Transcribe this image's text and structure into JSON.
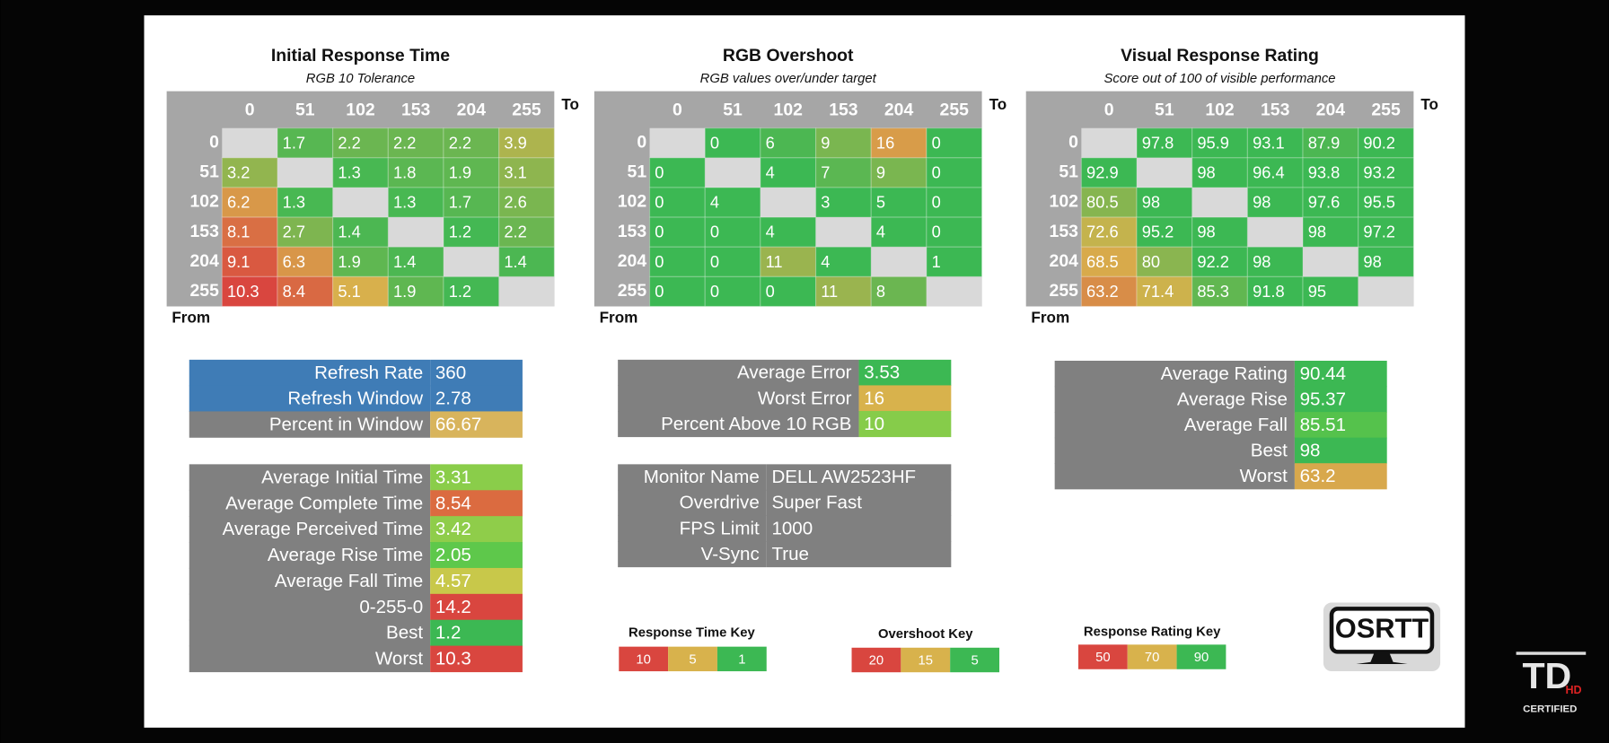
{
  "heatmaps": [
    {
      "title": "Initial Response Time",
      "subtitle": "RGB 10 Tolerance",
      "to_label": "To",
      "from_label": "From",
      "columns": [
        0,
        51,
        102,
        153,
        204,
        255
      ],
      "rows": [
        0,
        51,
        102,
        153,
        204,
        255
      ],
      "cells": [
        [
          null,
          1.7,
          2.2,
          2.2,
          2.2,
          3.9
        ],
        [
          3.2,
          null,
          1.3,
          1.8,
          1.9,
          3.1
        ],
        [
          6.2,
          1.3,
          null,
          1.3,
          1.7,
          2.6
        ],
        [
          8.1,
          2.7,
          1.4,
          null,
          1.2,
          2.2
        ],
        [
          9.1,
          6.3,
          1.9,
          1.4,
          null,
          1.4
        ],
        [
          10.3,
          8.4,
          5.1,
          1.9,
          1.2,
          null
        ]
      ],
      "key": {
        "title": "Response Time Key",
        "values": [
          10,
          5,
          1
        ],
        "colors": [
          "#d9463f",
          "#d8b24c",
          "#3cb853"
        ]
      }
    },
    {
      "title": "RGB Overshoot",
      "subtitle": "RGB values over/under target",
      "to_label": "To",
      "from_label": "From",
      "columns": [
        0,
        51,
        102,
        153,
        204,
        255
      ],
      "rows": [
        0,
        51,
        102,
        153,
        204,
        255
      ],
      "cells": [
        [
          null,
          0,
          6,
          9,
          16,
          0
        ],
        [
          0,
          null,
          4,
          7,
          9,
          0
        ],
        [
          0,
          4,
          null,
          3,
          5,
          0
        ],
        [
          0,
          0,
          4,
          null,
          4,
          0
        ],
        [
          0,
          0,
          11,
          4,
          null,
          1
        ],
        [
          0,
          0,
          0,
          11,
          8,
          null
        ]
      ],
      "key": {
        "title": "Overshoot Key",
        "values": [
          20,
          15,
          5
        ],
        "colors": [
          "#d9463f",
          "#d8b24c",
          "#3cb853"
        ]
      }
    },
    {
      "title": "Visual Response Rating",
      "subtitle": "Score out of 100 of visible performance",
      "to_label": "To",
      "from_label": "From",
      "columns": [
        0,
        51,
        102,
        153,
        204,
        255
      ],
      "rows": [
        0,
        51,
        102,
        153,
        204,
        255
      ],
      "cells": [
        [
          null,
          97.8,
          95.9,
          93.1,
          87.9,
          90.2
        ],
        [
          92.9,
          null,
          98,
          96.4,
          93.8,
          93.2
        ],
        [
          80.5,
          98,
          null,
          98,
          97.6,
          95.5
        ],
        [
          72.6,
          95.2,
          98,
          null,
          98,
          97.2
        ],
        [
          68.5,
          80,
          92.2,
          98,
          null,
          98
        ],
        [
          63.2,
          71.4,
          85.3,
          91.8,
          95,
          null
        ]
      ],
      "key": {
        "title": "Response Rating Key",
        "values": [
          50,
          70,
          90
        ],
        "colors": [
          "#d9463f",
          "#d8b24c",
          "#3cb853"
        ]
      }
    }
  ],
  "stats_tables": [
    {
      "rows": [
        {
          "label": "Refresh Rate",
          "value": 360,
          "label_color": "#3f7cb6",
          "value_color": "#3f7cb6"
        },
        {
          "label": "Refresh Window",
          "value": 2.78,
          "label_color": "#3f7cb6",
          "value_color": "#3f7cb6"
        },
        {
          "label": "Percent in Window",
          "value": 66.67,
          "label_color": "#808080",
          "value_color": "#d8b45c"
        }
      ]
    },
    {
      "rows": [
        {
          "label": "Average Initial Time",
          "value": 3.31,
          "label_color": "#808080",
          "value_color": "#8acd4a"
        },
        {
          "label": "Average Complete Time",
          "value": 8.54,
          "label_color": "#808080",
          "value_color": "#db6b40"
        },
        {
          "label": "Average Perceived Time",
          "value": 3.42,
          "label_color": "#808080",
          "value_color": "#8fcd4a"
        },
        {
          "label": "Average Rise Time",
          "value": 2.05,
          "label_color": "#808080",
          "value_color": "#5ec84b"
        },
        {
          "label": "Average Fall Time",
          "value": 4.57,
          "label_color": "#808080",
          "value_color": "#c8c84a"
        },
        {
          "label": "0-255-0",
          "value": 14.2,
          "label_color": "#808080",
          "value_color": "#d9463f"
        },
        {
          "label": "Best",
          "value": 1.2,
          "label_color": "#808080",
          "value_color": "#3cb853"
        },
        {
          "label": "Worst",
          "value": 10.3,
          "label_color": "#808080",
          "value_color": "#d9463f"
        }
      ]
    },
    {
      "rows": [
        {
          "label": "Average Error",
          "value": 3.53,
          "label_color": "#808080",
          "value_color": "#3cb853"
        },
        {
          "label": "Worst Error",
          "value": 16,
          "label_color": "#808080",
          "value_color": "#d8b24c"
        },
        {
          "label": "Percent Above 10 RGB",
          "value": 10,
          "label_color": "#808080",
          "value_color": "#86cc4a"
        }
      ]
    },
    {
      "rows": [
        {
          "label": "Monitor Name",
          "value": "DELL AW2523HF",
          "label_color": "#808080",
          "value_color": "#808080"
        },
        {
          "label": "Overdrive",
          "value": "Super Fast",
          "label_color": "#808080",
          "value_color": "#808080"
        },
        {
          "label": "FPS Limit",
          "value": 1000,
          "label_color": "#808080",
          "value_color": "#808080"
        },
        {
          "label": "V-Sync",
          "value": "True",
          "label_color": "#808080",
          "value_color": "#808080"
        }
      ]
    },
    {
      "rows": [
        {
          "label": "Average Rating",
          "value": 90.44,
          "label_color": "#808080",
          "value_color": "#3cb853"
        },
        {
          "label": "Average Rise",
          "value": 95.37,
          "label_color": "#808080",
          "value_color": "#3cb853"
        },
        {
          "label": "Average Fall",
          "value": 85.51,
          "label_color": "#808080",
          "value_color": "#55c24c"
        },
        {
          "label": "Best",
          "value": 98,
          "label_color": "#808080",
          "value_color": "#3cb853"
        },
        {
          "label": "Worst",
          "value": 63.2,
          "label_color": "#808080",
          "value_color": "#d8a84c"
        }
      ]
    }
  ],
  "logo": "OSRTT",
  "watermark": {
    "main": "TD",
    "badge": "HD",
    "caption": "CERTIFIED"
  }
}
